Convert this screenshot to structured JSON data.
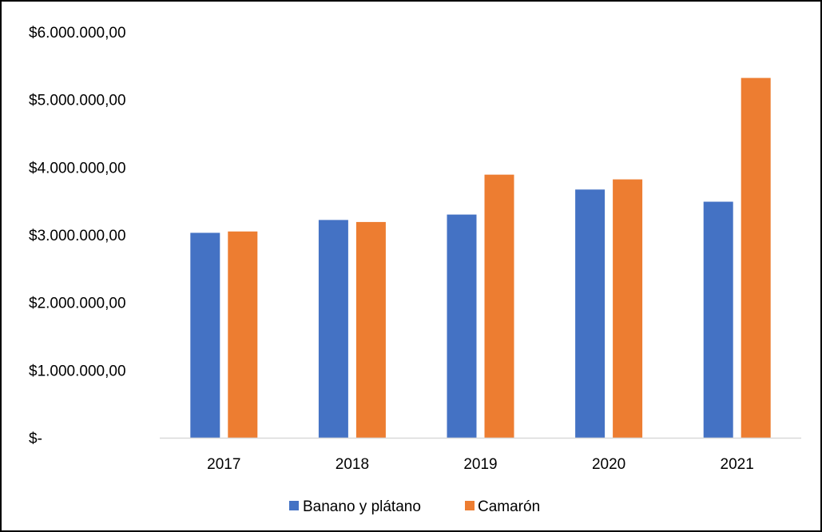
{
  "chart_data": {
    "type": "bar",
    "title": "",
    "xlabel": "",
    "ylabel": "",
    "categories": [
      "2017",
      "2018",
      "2019",
      "2020",
      "2021"
    ],
    "series": [
      {
        "name": "Banano y plátano",
        "color": "#4472C4",
        "values": [
          3030000,
          3220000,
          3300000,
          3670000,
          3490000
        ]
      },
      {
        "name": "Camarón",
        "color": "#ED7D31",
        "values": [
          3050000,
          3190000,
          3890000,
          3820000,
          5320000
        ]
      }
    ],
    "ylim": [
      0,
      6000000
    ],
    "y_ticks": [
      {
        "value": 0,
        "label": "$-"
      },
      {
        "value": 1000000,
        "label": "$1.000.000,00"
      },
      {
        "value": 2000000,
        "label": "$2.000.000,00"
      },
      {
        "value": 3000000,
        "label": "$3.000.000,00"
      },
      {
        "value": 4000000,
        "label": "$4.000.000,00"
      },
      {
        "value": 5000000,
        "label": "$5.000.000,00"
      },
      {
        "value": 6000000,
        "label": "$6.000.000,00"
      }
    ],
    "grid": false,
    "legend_position": "bottom",
    "axis_color": "#d9d9d9"
  }
}
